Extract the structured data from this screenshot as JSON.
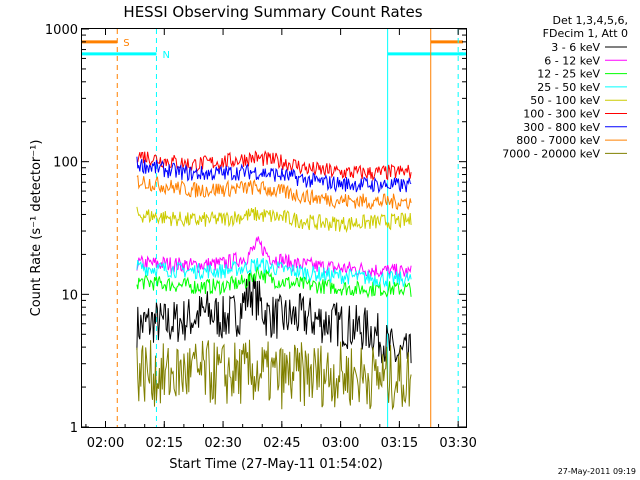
{
  "chart_data": {
    "type": "line",
    "title": "HESSI Observing Summary Count Rates",
    "xlabel": "Start Time (27-May-11 01:54:02)",
    "ylabel": "Count Rate (s⁻¹ detector⁻¹)",
    "yscale": "log",
    "ylim": [
      1,
      1000
    ],
    "xlim": [
      "01:54",
      "03:32"
    ],
    "x_ticks": [
      "02:00",
      "02:15",
      "02:30",
      "02:45",
      "03:00",
      "03:15",
      "03:30"
    ],
    "y_ticks": [
      "1",
      "10",
      "100",
      "1000"
    ],
    "grid": false,
    "legend_position": "right",
    "legend_header": [
      "Det 1,3,4,5,6,",
      "FDecim 1, Att 0"
    ],
    "timestamp": "27-May-2011 09:19",
    "series": [
      {
        "name": "3 - 6 keV",
        "color": "#000000",
        "x": [
          "02:08",
          "02:12",
          "02:16",
          "02:22",
          "02:26",
          "02:30",
          "02:34",
          "02:37",
          "02:41",
          "02:45",
          "02:50",
          "02:55",
          "03:00",
          "03:05",
          "03:08",
          "03:14",
          "03:18"
        ],
        "values": [
          5.7,
          6.2,
          6.0,
          6.6,
          7.4,
          6.5,
          7.2,
          10.8,
          7.0,
          6.6,
          6.8,
          6.3,
          5.9,
          5.5,
          5.3,
          3.5,
          3.4
        ]
      },
      {
        "name": "6 - 12 keV",
        "color": "#ff00ff",
        "x": [
          "02:08",
          "02:15",
          "02:22",
          "02:30",
          "02:36",
          "02:39",
          "02:42",
          "02:48",
          "02:56",
          "03:04",
          "03:12",
          "03:18"
        ],
        "values": [
          17,
          17,
          16.5,
          17,
          19,
          24,
          19,
          17,
          16,
          15.5,
          15,
          14.5
        ]
      },
      {
        "name": "12 - 25 keV",
        "color": "#00ff00",
        "x": [
          "02:08",
          "02:15",
          "02:22",
          "02:30",
          "02:36",
          "02:39",
          "02:42",
          "02:48",
          "02:56",
          "03:04",
          "03:12",
          "03:18"
        ],
        "values": [
          12.5,
          12,
          11.5,
          11.5,
          12.5,
          15,
          13,
          12,
          11.5,
          11,
          11,
          11
        ]
      },
      {
        "name": "25 - 50 keV",
        "color": "#00ffff",
        "x": [
          "02:08",
          "02:15",
          "02:22",
          "02:30",
          "02:36",
          "02:39",
          "02:42",
          "02:48",
          "02:56",
          "03:04",
          "03:12",
          "03:18"
        ],
        "values": [
          16,
          15.5,
          15,
          15,
          16,
          17,
          16,
          15,
          14,
          13.5,
          13,
          13
        ]
      },
      {
        "name": "50 - 100 keV",
        "color": "#ffff00",
        "display_color": "#cccc00",
        "x": [
          "02:08",
          "02:15",
          "02:22",
          "02:30",
          "02:38",
          "02:45",
          "02:52",
          "03:00",
          "03:08",
          "03:18"
        ],
        "values": [
          40,
          38,
          36,
          37,
          40,
          38,
          35,
          34,
          35,
          36
        ]
      },
      {
        "name": "100 - 300 keV",
        "color": "#ff0000",
        "x": [
          "02:08",
          "02:15",
          "02:22",
          "02:30",
          "02:38",
          "02:45",
          "02:52",
          "03:00",
          "03:08",
          "03:18"
        ],
        "values": [
          113,
          102,
          95,
          100,
          107,
          100,
          88,
          83,
          82,
          84
        ]
      },
      {
        "name": "300 - 800 keV",
        "color": "#0000ff",
        "x": [
          "02:08",
          "02:15",
          "02:22",
          "02:30",
          "02:38",
          "02:45",
          "02:52",
          "03:00",
          "03:08",
          "03:18"
        ],
        "values": [
          96,
          87,
          81,
          82,
          84,
          79,
          72,
          68,
          67,
          66
        ]
      },
      {
        "name": "800 - 7000 keV",
        "color": "#ff8000",
        "x": [
          "02:08",
          "02:15",
          "02:22",
          "02:30",
          "02:38",
          "02:45",
          "02:52",
          "03:00",
          "03:08",
          "03:18"
        ],
        "values": [
          72,
          66,
          61,
          62,
          64,
          59,
          54,
          51,
          50,
          50
        ]
      },
      {
        "name": "7000 - 20000 keV",
        "color": "#808000",
        "x": [
          "02:08",
          "02:15",
          "02:22",
          "02:30",
          "02:38",
          "02:45",
          "02:52",
          "03:00",
          "03:08",
          "03:18"
        ],
        "values": [
          2.7,
          2.4,
          2.6,
          2.5,
          2.6,
          2.4,
          2.5,
          2.5,
          2.4,
          2.3
        ]
      }
    ],
    "annotations": [
      {
        "label": "S",
        "color": "#ff8000",
        "style": "dashed vertical",
        "x": "02:03",
        "marker_x": "02:03",
        "level": 800
      },
      {
        "label": "N",
        "color": "#00ffff",
        "style": "dashed vertical",
        "x": "02:13",
        "marker_x": "02:13",
        "level": 650
      },
      {
        "label": "",
        "color": "#00ffff",
        "style": "solid vertical",
        "x": "03:12",
        "level": 650
      },
      {
        "label": "",
        "color": "#ff8000",
        "style": "solid vertical",
        "x": "03:23",
        "level": 800
      },
      {
        "label": "",
        "color": "#00ffff",
        "style": "dashed vertical",
        "x": "03:30",
        "level": 650
      }
    ]
  }
}
